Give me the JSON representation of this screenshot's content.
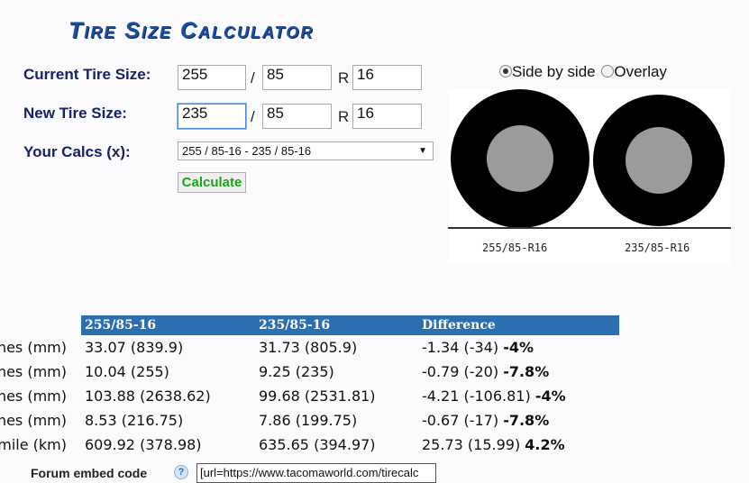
{
  "title": "Tire Size Calculator",
  "form": {
    "current_label": "Current Tire Size:",
    "new_label": "New Tire Size:",
    "calcs_label": "Your Calcs (x):",
    "current": {
      "width": "255",
      "aspect": "85",
      "rim": "16"
    },
    "new": {
      "width": "235",
      "aspect": "85",
      "rim": "16"
    },
    "slash": "/",
    "r": "R",
    "calcs_selected": "255 / 85-16 - 235 / 85-16",
    "calculate_label": "Calculate"
  },
  "view": {
    "side_by_side_label": "Side by side",
    "overlay_label": "Overlay",
    "selected": "side-by-side"
  },
  "diagram": {
    "tire1_label": "255/85-R16",
    "tire2_label": "235/85-R16",
    "tire_color": "#000000",
    "wheel_color": "#9b9b9b"
  },
  "results": {
    "headers": [
      "255/85-16",
      "235/85-16",
      "Difference"
    ],
    "rows": [
      {
        "label": "hes (mm)",
        "a": "33.07 (839.9)",
        "b": "31.73 (805.9)",
        "diff": "-1.34 (-34)",
        "pct": "-4%"
      },
      {
        "label": "hes (mm)",
        "a": "10.04 (255)",
        "b": "9.25 (235)",
        "diff": "-0.79 (-20)",
        "pct": "-7.8%"
      },
      {
        "label": "hes (mm)",
        "a": "103.88 (2638.62)",
        "b": "99.68 (2531.81)",
        "diff": "-4.21 (-106.81)",
        "pct": "-4%"
      },
      {
        "label": "hes (mm)",
        "a": "8.53 (216.75)",
        "b": "7.86 (199.75)",
        "diff": "-0.67 (-17)",
        "pct": "-7.8%"
      },
      {
        "label": "mile (km)",
        "a": "609.92 (378.98)",
        "b": "635.65 (394.97)",
        "diff": "25.73 (15.99)",
        "pct": "4.2%"
      }
    ],
    "header_color": "#2c6fb0"
  },
  "embed": {
    "label": "Forum embed code",
    "help": "?",
    "value": "[url=https://www.tacomaworld.com/tirecalc"
  }
}
